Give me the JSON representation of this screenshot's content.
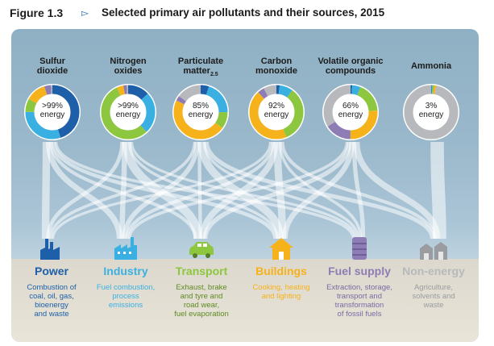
{
  "figure": {
    "label": "Figure 1.3",
    "arrow": "▻",
    "title": "Selected primary air pollutants and their sources, 2015"
  },
  "colors": {
    "power": "#1d5fa8",
    "industry": "#3ab0e2",
    "transport": "#8dc63f",
    "buildings": "#f6b21a",
    "fuel_supply": "#8e7cb5",
    "non_energy": "#b7b9bc"
  },
  "pollutants": [
    {
      "name_line1": "Sulfur",
      "name_line2": "dioxide",
      "sub": "",
      "percent": ">99%",
      "unit": "energy",
      "shares": [
        0.45,
        0.3,
        0.08,
        0.12,
        0.04,
        0.01
      ]
    },
    {
      "name_line1": "Nitrogen",
      "name_line2": "oxides",
      "sub": "",
      "percent": ">99%",
      "unit": "energy",
      "shares": [
        0.13,
        0.25,
        0.55,
        0.04,
        0.02,
        0.01
      ]
    },
    {
      "name_line1": "Particulate",
      "name_line2": "matter",
      "sub": "2.5",
      "percent": "85%",
      "unit": "energy",
      "shares": [
        0.05,
        0.2,
        0.1,
        0.47,
        0.03,
        0.15
      ]
    },
    {
      "name_line1": "Carbon",
      "name_line2": "monoxide",
      "sub": "",
      "percent": "92%",
      "unit": "energy",
      "shares": [
        0.02,
        0.08,
        0.34,
        0.44,
        0.04,
        0.08
      ]
    },
    {
      "name_line1": "Volatile organic",
      "name_line2": "compounds",
      "sub": "",
      "percent": "66%",
      "unit": "energy",
      "shares": [
        0.01,
        0.05,
        0.18,
        0.26,
        0.16,
        0.34
      ]
    },
    {
      "name_line1": "",
      "name_line2": "Ammonia",
      "sub": "",
      "percent": "3%",
      "unit": "energy",
      "shares": [
        0.003,
        0.005,
        0.01,
        0.012,
        0.0,
        0.97
      ]
    }
  ],
  "sources": [
    {
      "title": "Power",
      "icon": "power-plant-icon",
      "color": "#1d5fa8",
      "desc": [
        "Combustion of",
        "coal, oil, gas,",
        "bioenergy",
        "and waste"
      ]
    },
    {
      "title": "Industry",
      "icon": "factory-icon",
      "color": "#3ab0e2",
      "desc": [
        "Fuel combustion,",
        "process",
        "emissions"
      ]
    },
    {
      "title": "Transport",
      "icon": "car-icon",
      "color": "#8dc63f",
      "desc": [
        "Exhaust, brake",
        "and tyre and",
        "road wear,",
        "fuel evaporation"
      ]
    },
    {
      "title": "Buildings",
      "icon": "house-icon",
      "color": "#f6b21a",
      "desc": [
        "Cooking, heating",
        "and lighting"
      ]
    },
    {
      "title": "Fuel supply",
      "icon": "oil-barrel-icon",
      "color": "#8e7cb5",
      "desc": [
        "Extraction, storage,",
        "transport and",
        "transformation",
        "of fossil fuels"
      ]
    },
    {
      "title": "Non-energy",
      "icon": "farm-barn-icon",
      "color": "#b7b9bc",
      "desc": [
        "Agriculture,",
        "solvents and",
        "waste"
      ]
    }
  ]
}
